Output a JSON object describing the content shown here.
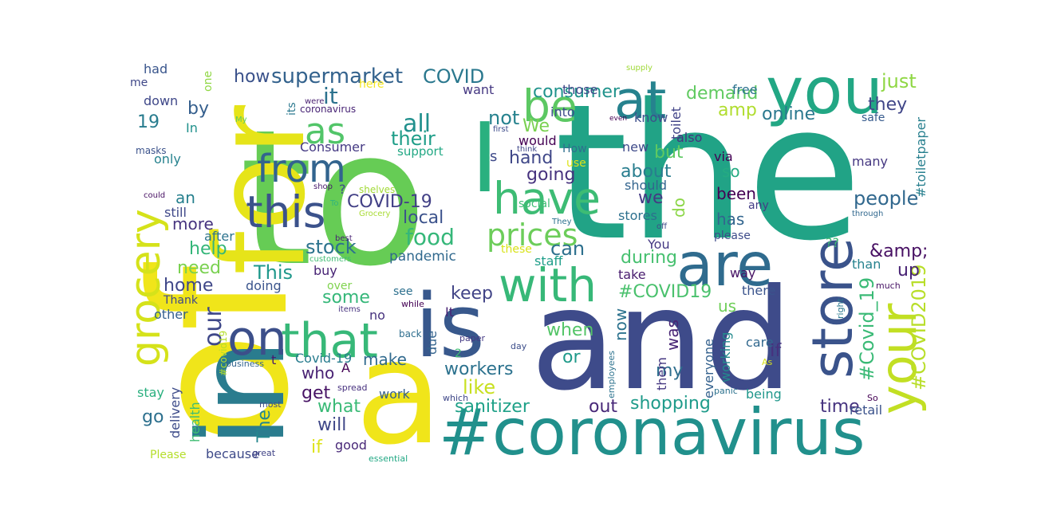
{
  "words": [
    {
      "text": "the",
      "color": "#21a386"
    },
    {
      "text": "to",
      "color": "#66cc55"
    },
    {
      "text": "and",
      "color": "#3e4b8a"
    },
    {
      "text": "of",
      "color": "#f0e51a"
    },
    {
      "text": "in",
      "color": "#2a7c8e"
    },
    {
      "text": "a",
      "color": "#f0e51a"
    },
    {
      "text": "for",
      "color": "#e6e419"
    },
    {
      "text": "#coronavirus",
      "color": "#21908c"
    },
    {
      "text": "is",
      "color": "#38588c"
    },
    {
      "text": "you",
      "color": "#22a784"
    },
    {
      "text": "are",
      "color": "#2f6b8e"
    },
    {
      "text": "I",
      "color": "#2ab07f"
    },
    {
      "text": "store",
      "color": "#3a538b"
    },
    {
      "text": "with",
      "color": "#37b878"
    },
    {
      "text": "on",
      "color": "#3c4f8a"
    },
    {
      "text": "that",
      "color": "#37b878"
    },
    {
      "text": "grocery",
      "color": "#d5e21a"
    },
    {
      "text": "this",
      "color": "#3b528b"
    },
    {
      "text": "at",
      "color": "#26828e"
    },
    {
      "text": "your",
      "color": "#c2df23"
    },
    {
      "text": "be",
      "color": "#5cc863"
    },
    {
      "text": "have",
      "color": "#3dbc74"
    },
    {
      "text": "from",
      "color": "#32648e"
    },
    {
      "text": "as",
      "color": "#52c569"
    },
    {
      "text": "prices",
      "color": "#6ccd5a"
    },
    {
      "text": "food",
      "color": "#35b779"
    },
    {
      "text": "our",
      "color": "#3f4889"
    },
    {
      "text": "#COVID19",
      "color": "#4ac16d"
    },
    {
      "text": "#Covid_19",
      "color": "#3aba76"
    },
    {
      "text": "#COVID2019",
      "color": "#b8de29"
    },
    {
      "text": "supermarket",
      "color": "#33628d"
    },
    {
      "text": "COVID",
      "color": "#2a788e"
    },
    {
      "text": "consumer",
      "color": "#20938c"
    },
    {
      "text": "demand",
      "color": "#60ca60"
    },
    {
      "text": "just",
      "color": "#8fd744"
    },
    {
      "text": "it",
      "color": "#2c728e"
    },
    {
      "text": "all",
      "color": "#21908d"
    },
    {
      "text": "their",
      "color": "#1f9e89"
    },
    {
      "text": "not",
      "color": "#26828e"
    },
    {
      "text": "We",
      "color": "#7ad151"
    },
    {
      "text": "can",
      "color": "#2d708e"
    },
    {
      "text": "online",
      "color": "#2a788e"
    },
    {
      "text": "they",
      "color": "#404688"
    },
    {
      "text": "how",
      "color": "#3b528b"
    },
    {
      "text": "by",
      "color": "#355f8d"
    },
    {
      "text": "19",
      "color": "#287c8e"
    },
    {
      "text": "amp",
      "color": "#b0dd2f"
    },
    {
      "text": "&amp;",
      "color": "#471063"
    },
    {
      "text": "people",
      "color": "#31688e"
    },
    {
      "text": "COVID-19",
      "color": "#424086"
    },
    {
      "text": "stock",
      "color": "#2c738e"
    },
    {
      "text": "going",
      "color": "#46327e"
    },
    {
      "text": "about",
      "color": "#287d8e"
    },
    {
      "text": "been",
      "color": "#440154"
    },
    {
      "text": "but",
      "color": "#5ec962"
    },
    {
      "text": "has",
      "color": "#32658e"
    },
    {
      "text": "up",
      "color": "#482374"
    },
    {
      "text": "during",
      "color": "#46c06f"
    },
    {
      "text": "so",
      "color": "#25ab82"
    },
    {
      "text": "hand",
      "color": "#3f4788"
    },
    {
      "text": "local",
      "color": "#3b528b"
    },
    {
      "text": "we",
      "color": "#443a83"
    },
    {
      "text": "do",
      "color": "#8bd646"
    },
    {
      "text": "This",
      "color": "#1f988b"
    },
    {
      "text": "home",
      "color": "#3f4788"
    },
    {
      "text": "need",
      "color": "#7ad151"
    },
    {
      "text": "help",
      "color": "#34b679"
    },
    {
      "text": "more",
      "color": "#46337f"
    },
    {
      "text": "an",
      "color": "#27808e"
    },
    {
      "text": "keep",
      "color": "#414487"
    },
    {
      "text": "some",
      "color": "#35b779"
    },
    {
      "text": "pandemic",
      "color": "#30698e"
    },
    {
      "text": "when",
      "color": "#54c568"
    },
    {
      "text": "now",
      "color": "#2c728e"
    },
    {
      "text": "was",
      "color": "#482575"
    },
    {
      "text": "If",
      "color": "#46327e"
    },
    {
      "text": "us",
      "color": "#6ece58"
    },
    {
      "text": "workers",
      "color": "#2c728e"
    },
    {
      "text": "make",
      "color": "#306a8e"
    },
    {
      "text": "like",
      "color": "#c8e020"
    },
    {
      "text": "or",
      "color": "#1f9a8a"
    },
    {
      "text": "my",
      "color": "#2e6e8e"
    },
    {
      "text": "sanitizer",
      "color": "#1fa188"
    },
    {
      "text": "shopping",
      "color": "#1e9b8a"
    },
    {
      "text": "out",
      "color": "#482878"
    },
    {
      "text": "time",
      "color": "#46337f"
    },
    {
      "text": "get",
      "color": "#471365"
    },
    {
      "text": "what",
      "color": "#3aba76"
    },
    {
      "text": "will",
      "color": "#3f4788"
    },
    {
      "text": "The",
      "color": "#24868e"
    },
    {
      "text": "if",
      "color": "#dde318"
    },
    {
      "text": "go",
      "color": "#2d708e"
    },
    {
      "text": "who",
      "color": "#482173"
    },
    {
      "text": "Covid-19",
      "color": "#287c8e"
    },
    {
      "text": "A",
      "color": "#440154"
    },
    {
      "text": "work",
      "color": "#35608d"
    },
    {
      "text": "good",
      "color": "#482878"
    },
    {
      "text": "because",
      "color": "#3e4a89"
    },
    {
      "text": "Please",
      "color": "#b5de2b"
    },
    {
      "text": "stay",
      "color": "#2ab07f"
    },
    {
      "text": "delivery",
      "color": "#3e4c8a"
    },
    {
      "text": "health",
      "color": "#3fbc73"
    },
    {
      "text": "retail",
      "color": "#3b528b"
    },
    {
      "text": "working",
      "color": "#238a8d"
    },
    {
      "text": "care",
      "color": "#31688e"
    },
    {
      "text": "being",
      "color": "#1f978b"
    },
    {
      "text": "everyone",
      "color": "#34618d"
    },
    {
      "text": "them",
      "color": "#453781"
    },
    {
      "text": "there",
      "color": "#3a548c"
    },
    {
      "text": "take",
      "color": "#481c6e"
    },
    {
      "text": "way",
      "color": "#471365"
    },
    {
      "text": "than",
      "color": "#26828e"
    },
    {
      "text": "staff",
      "color": "#1f9e89"
    },
    {
      "text": "You",
      "color": "#443983"
    },
    {
      "text": "stores",
      "color": "#2d708e"
    },
    {
      "text": "should",
      "color": "#32648e"
    },
    {
      "text": "via",
      "color": "#440154"
    },
    {
      "text": "any",
      "color": "#433e85"
    },
    {
      "text": "many",
      "color": "#453781"
    },
    {
      "text": "#toiletpaper",
      "color": "#277f8e"
    },
    {
      "text": "please",
      "color": "#3e4c8a"
    },
    {
      "text": "new",
      "color": "#3e4a89"
    },
    {
      "text": "also",
      "color": "#46327e"
    },
    {
      "text": "know",
      "color": "#3d4e8a"
    },
    {
      "text": "toilet",
      "color": "#404387"
    },
    {
      "text": "free",
      "color": "#2c738e"
    },
    {
      "text": "safe",
      "color": "#375b8d"
    },
    {
      "text": "those",
      "color": "#3f4889"
    },
    {
      "text": "into",
      "color": "#3d4d8a"
    },
    {
      "text": "want",
      "color": "#453882"
    },
    {
      "text": "would",
      "color": "#440154"
    },
    {
      "text": "How",
      "color": "#2e6f8e"
    },
    {
      "text": "use",
      "color": "#dde318"
    },
    {
      "text": "social",
      "color": "#3dbc74"
    },
    {
      "text": "these",
      "color": "#d8e219"
    },
    {
      "text": "buy",
      "color": "#482475"
    },
    {
      "text": "over",
      "color": "#7fd34e"
    },
    {
      "text": "doing",
      "color": "#3a548c"
    },
    {
      "text": "Thank",
      "color": "#3f4889"
    },
    {
      "text": "other",
      "color": "#355f8d"
    },
    {
      "text": "see",
      "color": "#2d708e"
    },
    {
      "text": "It",
      "color": "#482374"
    },
    {
      "text": "no",
      "color": "#46327e"
    },
    {
      "text": "due",
      "color": "#33638d"
    },
    {
      "text": "had",
      "color": "#39558c"
    },
    {
      "text": "me",
      "color": "#3f4788"
    },
    {
      "text": "one",
      "color": "#8fd744"
    },
    {
      "text": "down",
      "color": "#3f4889"
    },
    {
      "text": "In",
      "color": "#21918c"
    },
    {
      "text": "its",
      "color": "#2a788e"
    },
    {
      "text": "only",
      "color": "#26828e"
    },
    {
      "text": "still",
      "color": "#3f4889"
    },
    {
      "text": "after",
      "color": "#2c738e"
    },
    {
      "text": "Consumer",
      "color": "#443983"
    },
    {
      "text": "support",
      "color": "#22a884"
    },
    {
      "text": "here",
      "color": "#f3e51e"
    },
    {
      "text": "were",
      "color": "#481f70"
    },
    {
      "text": "coronavirus",
      "color": "#482475"
    },
    {
      "text": "My",
      "color": "#5ec962"
    },
    {
      "text": "masks",
      "color": "#3b528b"
    },
    {
      "text": "could",
      "color": "#471063"
    },
    {
      "text": "shop",
      "color": "#481a6c"
    },
    {
      "text": "To",
      "color": "#2fb47c"
    },
    {
      "text": "shelves",
      "color": "#a2da37"
    },
    {
      "text": "Grocery",
      "color": "#a8db34"
    },
    {
      "text": "best",
      "color": "#482173"
    },
    {
      "text": "customers",
      "color": "#3fbc73"
    },
    {
      "text": "items",
      "color": "#46327e"
    },
    {
      "text": "while",
      "color": "#440154"
    },
    {
      "text": "back",
      "color": "#2e6e8e"
    },
    {
      "text": "paper",
      "color": "#443983"
    },
    {
      "text": "2",
      "color": "#3fbc73"
    },
    {
      "text": "day",
      "color": "#3d4e8a"
    },
    {
      "text": "employees",
      "color": "#2c728e"
    },
    {
      "text": "As",
      "color": "#d8e219"
    },
    {
      "text": "business",
      "color": "#32648e"
    },
    {
      "text": "t",
      "color": "#481b6d"
    },
    {
      "text": "spread",
      "color": "#46307e"
    },
    {
      "text": "most",
      "color": "#3d4d8a"
    },
    {
      "text": "which",
      "color": "#3f4788"
    },
    {
      "text": "great",
      "color": "#414487"
    },
    {
      "text": "essential",
      "color": "#22a884"
    },
    {
      "text": "#covid19",
      "color": "#b5de2b"
    },
    {
      "text": "panic",
      "color": "#2c728e"
    },
    {
      "text": "So",
      "color": "#440154"
    },
    {
      "text": "right",
      "color": "#2a788e"
    },
    {
      "text": "much",
      "color": "#471365"
    },
    {
      "text": "??",
      "color": "#3fbc73"
    },
    {
      "text": "?",
      "color": "#3f4889"
    },
    {
      "text": "s",
      "color": "#3e4a89"
    },
    {
      "text": "They",
      "color": "#2c728e"
    },
    {
      "text": "think",
      "color": "#3f4788"
    },
    {
      "text": "first",
      "color": "#3e4c8a"
    },
    {
      "text": "even",
      "color": "#440154"
    },
    {
      "text": "supply",
      "color": "#a0da39"
    },
    {
      "text": "through",
      "color": "#31688e"
    },
    {
      "text": "off",
      "color": "#3e4a89"
    }
  ]
}
